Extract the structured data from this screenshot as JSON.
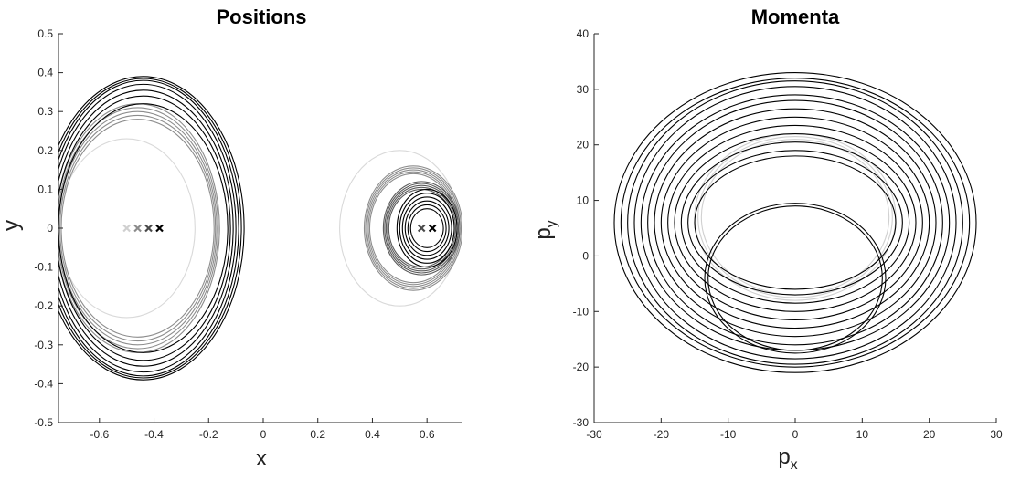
{
  "chart_data": [
    {
      "type": "line",
      "title": "Positions",
      "xlabel": "x",
      "ylabel": "y",
      "xlim": [
        -0.75,
        0.73
      ],
      "ylim": [
        -0.5,
        0.5
      ],
      "xticks": [
        -0.6,
        -0.4,
        -0.2,
        0,
        0.2,
        0.4,
        0.6
      ],
      "xtick_labels": [
        "-0.6",
        "-0.4",
        "-0.2",
        "0",
        "0.2",
        "0.4",
        "0.6"
      ],
      "yticks": [
        -0.5,
        -0.4,
        -0.3,
        -0.2,
        -0.1,
        0,
        0.1,
        0.2,
        0.3,
        0.4,
        0.5
      ],
      "ytick_labels": [
        "-0.5",
        "-0.4",
        "-0.3",
        "-0.2",
        "-0.1",
        "0",
        "0.1",
        "0.2",
        "0.3",
        "0.4",
        "0.5"
      ],
      "grid": false,
      "series": [
        {
          "color": "#d9d9d9",
          "cx": -0.5,
          "cy": 0,
          "rx": [
            0.25
          ],
          "ry": [
            0.23
          ]
        },
        {
          "color": "#8c8c8c",
          "cx": -0.46,
          "cy": 0,
          "rx": [
            0.28,
            0.285,
            0.29,
            0.295,
            0.3
          ],
          "ry": [
            0.28,
            0.29,
            0.3,
            0.31,
            0.32
          ]
        },
        {
          "color": "#000000",
          "cx": -0.44,
          "cy": 0,
          "rx": [
            0.31,
            0.32,
            0.33,
            0.34,
            0.35,
            0.36,
            0.37
          ],
          "ry": [
            0.32,
            0.34,
            0.355,
            0.37,
            0.38,
            0.385,
            0.39
          ]
        },
        {
          "color": "#d9d9d9",
          "cx": 0.5,
          "cy": 0,
          "rx": [
            0.22
          ],
          "ry": [
            0.2
          ]
        },
        {
          "color": "#8c8c8c",
          "cx": 0.55,
          "cy": 0,
          "rx": [
            0.16,
            0.165,
            0.17,
            0.175,
            0.18
          ],
          "ry": [
            0.14,
            0.145,
            0.15,
            0.155,
            0.16
          ]
        },
        {
          "color": "#5a5a5a",
          "cx": 0.58,
          "cy": 0,
          "rx": [
            0.12,
            0.125,
            0.13,
            0.135,
            0.14
          ],
          "ry": [
            0.1,
            0.105,
            0.11,
            0.115,
            0.12
          ]
        },
        {
          "color": "#000000",
          "cx": 0.6,
          "cy": 0,
          "rx": [
            0.06,
            0.07,
            0.08,
            0.09,
            0.1,
            0.11
          ],
          "ry": [
            0.05,
            0.06,
            0.07,
            0.08,
            0.09,
            0.1
          ]
        }
      ],
      "markers": [
        {
          "x": -0.5,
          "y": 0,
          "color": "#d0d0d0"
        },
        {
          "x": -0.46,
          "y": 0,
          "color": "#8c8c8c"
        },
        {
          "x": -0.42,
          "y": 0,
          "color": "#4a4a4a"
        },
        {
          "x": -0.38,
          "y": 0,
          "color": "#000000"
        },
        {
          "x": 0.58,
          "y": 0,
          "color": "#4a4a4a"
        },
        {
          "x": 0.62,
          "y": 0,
          "color": "#000000"
        }
      ]
    },
    {
      "type": "line",
      "title": "Momenta",
      "xlabel": "p",
      "xlabel_sub": "x",
      "ylabel": "p",
      "ylabel_sub": "y",
      "xlim": [
        -30,
        30
      ],
      "ylim": [
        -30,
        40
      ],
      "xticks": [
        -30,
        -20,
        -10,
        0,
        10,
        20,
        30
      ],
      "xtick_labels": [
        "-30",
        "-20",
        "-10",
        "0",
        "10",
        "20",
        "30"
      ],
      "yticks": [
        -30,
        -20,
        -10,
        0,
        10,
        20,
        30,
        40
      ],
      "ytick_labels": [
        "-30",
        "-20",
        "-10",
        "0",
        "10",
        "20",
        "30",
        "40"
      ],
      "grid": false,
      "series": [
        {
          "color": "#d0d0d0",
          "cx": 0,
          "cy": 7,
          "rx": [
            14,
            14.5,
            15
          ],
          "ry": [
            14,
            14.5,
            15
          ]
        },
        {
          "color": "#000000",
          "cx": 0,
          "cy": -4,
          "rx": [
            13,
            13.5
          ],
          "ry": [
            13,
            13.5
          ]
        },
        {
          "color": "#000000",
          "cx": 0,
          "cy": 6,
          "rx": [
            15,
            16,
            17,
            18,
            19,
            20,
            21,
            22,
            23,
            24,
            25,
            26,
            27
          ],
          "ry": [
            12,
            13,
            14.5,
            16,
            17.5,
            19,
            20.5,
            22,
            23,
            24.5,
            25.5,
            26,
            27
          ]
        }
      ],
      "markers": []
    }
  ]
}
